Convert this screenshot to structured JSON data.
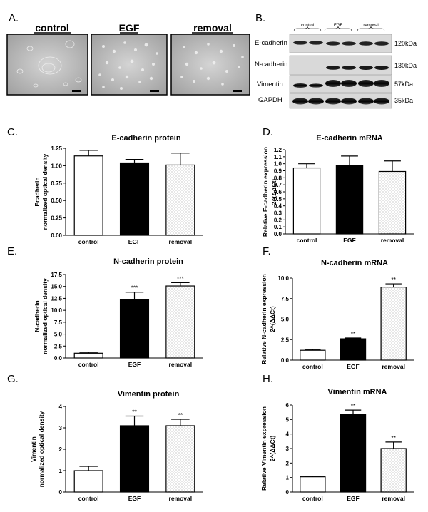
{
  "panels": {
    "A": {
      "letter": "A.",
      "images": [
        {
          "label": "control"
        },
        {
          "label": "EGF"
        },
        {
          "label": "removal"
        }
      ]
    },
    "B": {
      "letter": "B.",
      "lane_groups": [
        "control",
        "EGF",
        "removal"
      ],
      "rows": [
        {
          "protein": "E-cadherin",
          "kda": "120kDa"
        },
        {
          "protein": "N-cadherin",
          "kda": "130kDa"
        },
        {
          "protein": "Vimentin",
          "kda": "57kDa"
        },
        {
          "protein": "GAPDH",
          "kda": "35kDa"
        }
      ]
    }
  },
  "colors": {
    "control_fill": "#ffffff",
    "egf_fill": "#000000",
    "removal_fill": "#e8e8e8",
    "axis": "#000000"
  },
  "chart_data": [
    {
      "id": "C",
      "letter": "C.",
      "type": "bar",
      "title": "E-cadherin protein",
      "ylabel": [
        "Ecadherin",
        "normalized optical density"
      ],
      "categories": [
        "control",
        "EGF",
        "removal"
      ],
      "values": [
        1.14,
        1.04,
        1.01
      ],
      "errors": [
        0.08,
        0.05,
        0.17
      ],
      "significance": [
        "",
        "",
        ""
      ],
      "ylim": [
        0,
        1.25
      ],
      "yticks": [
        "0.00",
        "0.25",
        "0.50",
        "0.75",
        "1.00",
        "1.25"
      ]
    },
    {
      "id": "D",
      "letter": "D.",
      "type": "bar",
      "title": "E-cadherin mRNA",
      "ylabel": [
        "Relative E-cadherin expression",
        "2^(ΔΔCt)"
      ],
      "categories": [
        "control",
        "EGF",
        "removal"
      ],
      "values": [
        0.94,
        0.98,
        0.89
      ],
      "errors": [
        0.06,
        0.13,
        0.15
      ],
      "significance": [
        "",
        "",
        ""
      ],
      "ylim": [
        0,
        1.2
      ],
      "yticks": [
        "0.0",
        "0.1",
        "0.2",
        "0.3",
        "0.4",
        "0.5",
        "0.6",
        "0.7",
        "0.8",
        "0.9",
        "1.0",
        "1.1",
        "1.2"
      ]
    },
    {
      "id": "E",
      "letter": "E.",
      "type": "bar",
      "title": "N-cadherin protein",
      "ylabel": [
        "N-cadherin",
        "normalized optical density"
      ],
      "categories": [
        "control",
        "EGF",
        "removal"
      ],
      "values": [
        1.0,
        12.2,
        15.1
      ],
      "errors": [
        0.2,
        1.6,
        0.7
      ],
      "significance": [
        "",
        "***",
        "***"
      ],
      "ylim": [
        0,
        17.5
      ],
      "yticks": [
        "0.0",
        "2.5",
        "5.0",
        "7.5",
        "10.0",
        "12.5",
        "15.0",
        "17.5"
      ]
    },
    {
      "id": "F",
      "letter": "F.",
      "type": "bar",
      "title": "N-cadherin mRNA",
      "ylabel": [
        "Relative N-cadherin expression",
        "2^(ΔΔCt)"
      ],
      "categories": [
        "control",
        "EGF",
        "removal"
      ],
      "values": [
        1.2,
        2.6,
        8.9
      ],
      "errors": [
        0.1,
        0.1,
        0.4
      ],
      "significance": [
        "",
        "**",
        "**"
      ],
      "ylim": [
        0,
        10
      ],
      "yticks": [
        "0.0",
        "2.5",
        "5.0",
        "7.5",
        "10.0"
      ]
    },
    {
      "id": "G",
      "letter": "G.",
      "type": "bar",
      "title": "Vimentin protein",
      "ylabel": [
        "Vimentin",
        "normalized optical density"
      ],
      "categories": [
        "control",
        "EGF",
        "removal"
      ],
      "values": [
        1.0,
        3.1,
        3.1
      ],
      "errors": [
        0.2,
        0.45,
        0.3
      ],
      "significance": [
        "",
        "**",
        "**"
      ],
      "ylim": [
        0,
        4
      ],
      "yticks": [
        "0",
        "1",
        "2",
        "3",
        "4"
      ]
    },
    {
      "id": "H",
      "letter": "H.",
      "type": "bar",
      "title": "Vimentin mRNA",
      "ylabel": [
        "Relative Vimentin expression",
        "2^(ΔΔCt)"
      ],
      "categories": [
        "control",
        "EGF",
        "removal"
      ],
      "values": [
        1.05,
        5.35,
        3.0
      ],
      "errors": [
        0.05,
        0.3,
        0.45
      ],
      "significance": [
        "",
        "**",
        "**"
      ],
      "ylim": [
        0,
        6
      ],
      "yticks": [
        "0",
        "1",
        "2",
        "3",
        "4",
        "5",
        "6"
      ]
    }
  ]
}
